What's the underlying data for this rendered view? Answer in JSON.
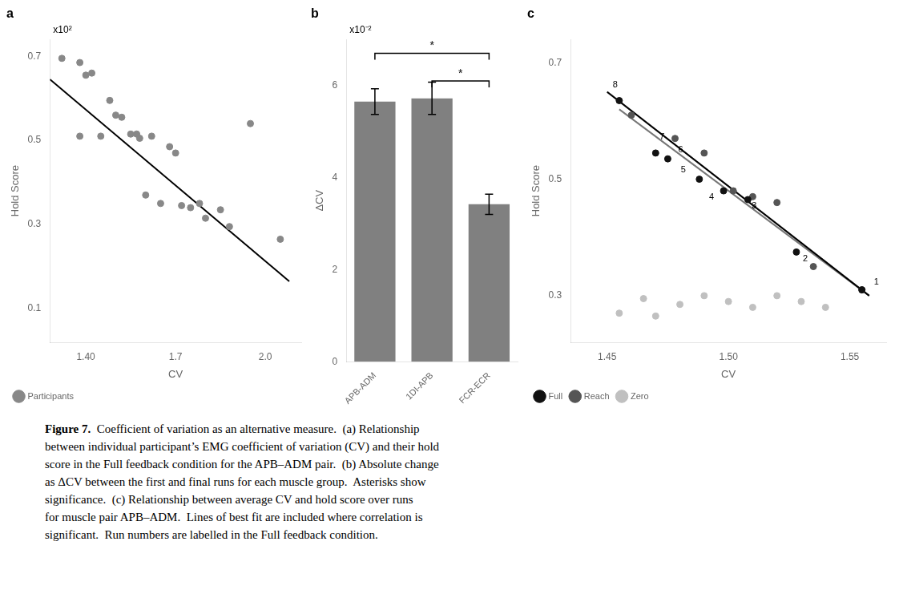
{
  "chart_data": [
    {
      "type": "scatter",
      "title": "a",
      "annotations": [
        {
          "text": "x10²"
        }
      ],
      "x_label": "CV",
      "y_label": "Hold Score",
      "series": [
        {
          "name": "Participants",
          "type": "scatter",
          "color": "#888888",
          "x": [
            1.32,
            1.38,
            1.38,
            1.4,
            1.42,
            1.45,
            1.48,
            1.5,
            1.52,
            1.55,
            1.57,
            1.58,
            1.6,
            1.62,
            1.65,
            1.68,
            1.7,
            1.72,
            1.75,
            1.78,
            1.8,
            1.85,
            1.88,
            1.95,
            2.05
          ],
          "values": [
            0.695,
            0.685,
            0.51,
            0.655,
            0.66,
            0.51,
            0.595,
            0.56,
            0.555,
            0.515,
            0.515,
            0.505,
            0.37,
            0.51,
            0.35,
            0.485,
            0.47,
            0.345,
            0.34,
            0.35,
            0.315,
            0.335,
            0.295,
            0.54,
            0.265
          ]
        },
        {
          "type": "line",
          "color": "#000000",
          "x": [
            1.28,
            2.08
          ],
          "values": [
            0.645,
            0.165
          ]
        }
      ],
      "xlim": [
        1.28,
        2.12
      ],
      "ylim": [
        0.02,
        0.74
      ],
      "xticks": [
        {
          "value": 1.4,
          "label": "1.40"
        },
        1.7,
        {
          "value": 2,
          "label": "2.0"
        }
      ],
      "yticks": [
        0.1,
        0.3,
        0.5,
        0.7
      ],
      "grid": false,
      "legend": "lower left"
    },
    {
      "type": "bar",
      "title": "b",
      "annotations": [
        {
          "text": "x10⁻²"
        },
        {
          "text": "*",
          "from": "APB-ADM",
          "to": "FCR-ECR",
          "y": 6.7
        },
        {
          "text": "*",
          "from": "1DI-APB",
          "to": "FCR-ECR",
          "y": 6.1
        }
      ],
      "y_label": "ΔCV",
      "categories": [
        "APB-ADM",
        "1DI-APB",
        "FCR-ECR"
      ],
      "values": [
        5.65,
        5.72,
        3.42
      ],
      "errors": [
        0.28,
        0.35,
        0.22
      ],
      "color": "#808080",
      "ylim": [
        0,
        7
      ],
      "yticks": [
        0,
        2,
        4,
        6
      ],
      "grid": false
    },
    {
      "type": "scatter",
      "title": "c",
      "x_label": "CV",
      "y_label": "Hold Score",
      "series": [
        {
          "name": "Full",
          "type": "scatter",
          "color": "#111111",
          "x": [
            1.455,
            1.47,
            1.475,
            1.488,
            1.498,
            1.508,
            1.528,
            1.555
          ],
          "values": [
            0.635,
            0.545,
            0.535,
            0.5,
            0.48,
            0.465,
            0.375,
            0.31
          ],
          "labels": [
            "8",
            "7",
            "6",
            "5",
            "4",
            "3",
            "2",
            "1"
          ]
        },
        {
          "name": "Reach",
          "type": "scatter",
          "color": "#555555",
          "x": [
            1.46,
            1.478,
            1.49,
            1.502,
            1.51,
            1.52,
            1.535,
            1.555
          ],
          "values": [
            0.61,
            0.57,
            0.545,
            0.48,
            0.47,
            0.46,
            0.35,
            0.31
          ]
        },
        {
          "name": "Zero",
          "type": "scatter",
          "color": "#c0c0c0",
          "x": [
            1.455,
            1.465,
            1.47,
            1.48,
            1.49,
            1.5,
            1.51,
            1.52,
            1.53,
            1.54
          ],
          "values": [
            0.27,
            0.295,
            0.265,
            0.285,
            0.3,
            0.29,
            0.28,
            0.3,
            0.29,
            0.28
          ]
        },
        {
          "type": "line",
          "color": "#000000",
          "x": [
            1.45,
            1.558
          ],
          "values": [
            0.65,
            0.3
          ]
        },
        {
          "type": "line",
          "color": "#777777",
          "x": [
            1.455,
            1.558
          ],
          "values": [
            0.62,
            0.3
          ]
        }
      ],
      "xlim": [
        1.435,
        1.565
      ],
      "ylim": [
        0.22,
        0.74
      ],
      "xticks": [
        1.45,
        {
          "value": 1.5,
          "label": "1.50"
        },
        1.55
      ],
      "yticks": [
        0.3,
        0.5,
        0.7
      ],
      "grid": false,
      "legend": "lower left"
    }
  ],
  "caption": {
    "bold": "Figure 7.",
    "lines": [
      "  Coefficient of variation as an alternative measure.  (a) Relationship",
      "between individual participant’s EMG coefficient of variation (CV) and their hold",
      "score in the Full feedback condition for the APB–ADM pair.  (b) Absolute change",
      "as ΔCV between the first and final runs for each muscle group.  Asterisks show",
      "significance.  (c) Relationship between average CV and hold score over runs",
      "for muscle pair APB–ADM.  Lines of best fit are included where correlation is",
      "significant.  Run numbers are labelled in the Full feedback condition."
    ]
  }
}
